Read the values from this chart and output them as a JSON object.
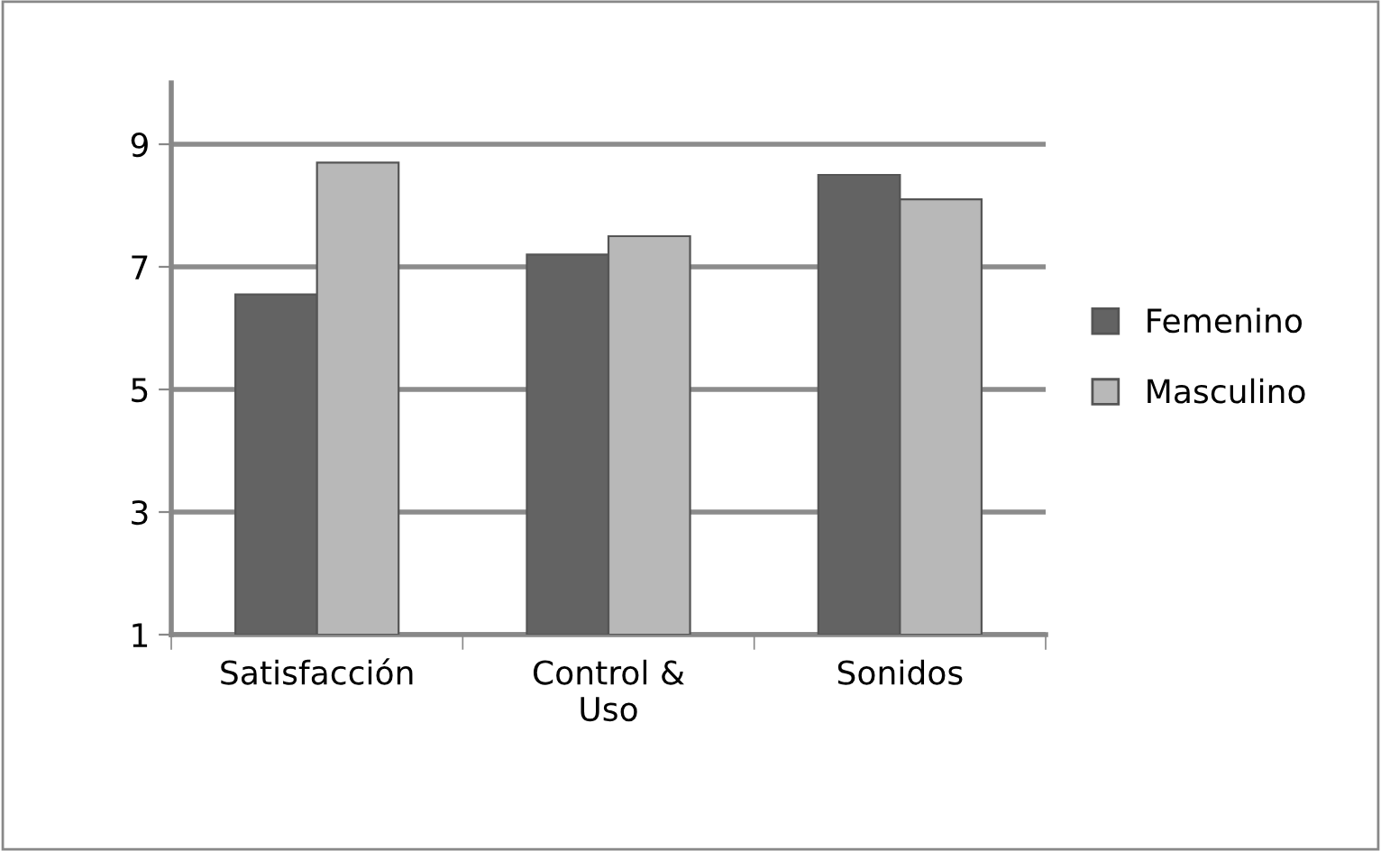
{
  "chart_data": {
    "type": "bar",
    "categories": [
      "Satisfacción",
      "Control &\nUso",
      "Sonidos"
    ],
    "series": [
      {
        "name": "Femenino",
        "color": "#636363",
        "values": [
          6.55,
          7.2,
          8.5
        ]
      },
      {
        "name": "Masculino",
        "color": "#b8b8b8",
        "values": [
          8.7,
          7.5,
          8.1
        ]
      }
    ],
    "ylim": [
      1,
      10
    ],
    "yticks": [
      1,
      3,
      5,
      7,
      9
    ],
    "grid": "y",
    "legend": "right"
  }
}
